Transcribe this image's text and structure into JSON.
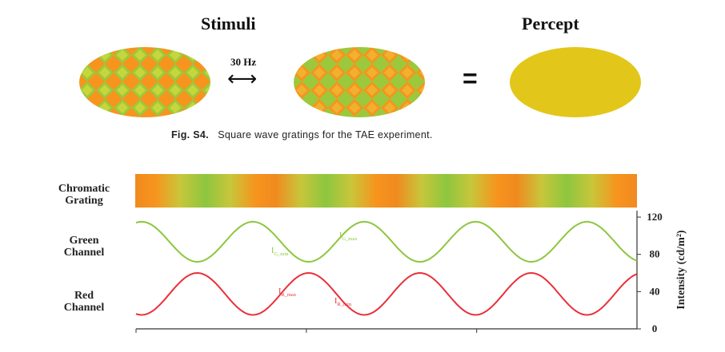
{
  "figure": {
    "stimuli_title": "Stimuli",
    "percept_title": "Percept",
    "frequency_label": "30 Hz",
    "arrow_glyph": "⟷",
    "equals_glyph": "=",
    "caption_label": "Fig. S4.",
    "caption_text": "Square wave gratings for the TAE experiment."
  },
  "rows": {
    "chromatic_line1": "Chromatic",
    "chromatic_line2": "Grating",
    "green_line1": "Green",
    "green_line2": "Channel",
    "red_line1": "Red",
    "red_line2": "Channel"
  },
  "annotations": {
    "green_min_main": "I",
    "green_min_sub": "G_min",
    "green_max_main": "I",
    "green_max_sub": "G_max",
    "red_max_main": "I",
    "red_max_sub": "R_max",
    "red_min_main": "I",
    "red_min_sub": "R_min"
  },
  "colors": {
    "green_channel": "#8dc63f",
    "red_channel": "#e8303a",
    "orange": "#f7941d",
    "yellow_green": "#b5d335",
    "percept": "#e3c61a"
  },
  "chart_data": {
    "type": "line",
    "ylabel": "Intensity (cd/m²)",
    "yticks": [
      "0",
      "40",
      "80",
      "120"
    ],
    "ylim": [
      0,
      120
    ],
    "series": [
      {
        "name": "Green Channel",
        "color": "#8dc63f",
        "min": 72,
        "max": 115,
        "cycles": 4.5,
        "phase": 0.2
      },
      {
        "name": "Red Channel",
        "color": "#e8303a",
        "min": 15,
        "max": 60,
        "cycles": 4.5,
        "phase": 0.7
      }
    ]
  }
}
